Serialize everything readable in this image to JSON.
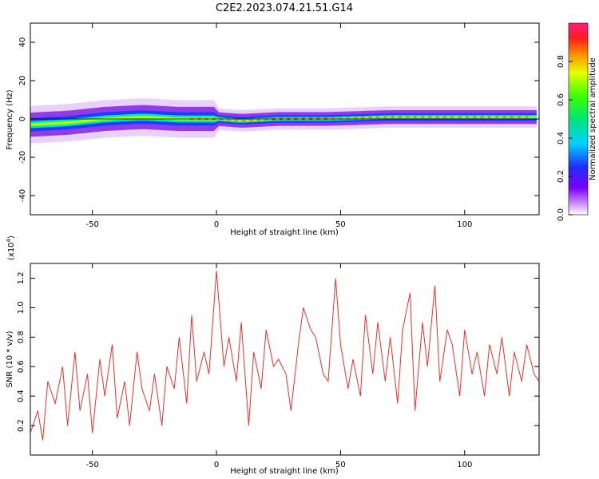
{
  "title": "C2E2.2023.074.21.51.G14",
  "chart_data": [
    {
      "type": "heatmap",
      "xlabel": "Height of straight line (km)",
      "ylabel": "Frequency (Hz)",
      "xlim": [
        -75,
        130
      ],
      "ylim": [
        -50,
        50
      ],
      "xticks": [
        -50,
        0,
        50,
        100
      ],
      "yticks": [
        -40,
        -20,
        0,
        20,
        40
      ],
      "colorbar": {
        "label": "Normalized spectral amplitude",
        "range": [
          0,
          1
        ],
        "ticks": [
          "0.0",
          "0.2",
          "0.4",
          "0.6",
          "0.8"
        ]
      },
      "ridge_center_hz": [
        {
          "x": -75,
          "y": -3
        },
        {
          "x": -60,
          "y": -2
        },
        {
          "x": -45,
          "y": 0
        },
        {
          "x": -30,
          "y": 1
        },
        {
          "x": -15,
          "y": 0
        },
        {
          "x": 0,
          "y": 0
        },
        {
          "x": 10,
          "y": -1
        },
        {
          "x": 25,
          "y": 0
        },
        {
          "x": 45,
          "y": 0
        },
        {
          "x": 70,
          "y": 1
        },
        {
          "x": 100,
          "y": 1
        },
        {
          "x": 130,
          "y": 1
        }
      ]
    },
    {
      "type": "line",
      "xlabel": "Height of straight line (km)",
      "ylabel": "SNR (10 * v/v)",
      "yscale_label": "(x10",
      "yscale_exp": "4",
      "xlim": [
        -75,
        130
      ],
      "ylim": [
        0,
        1.3
      ],
      "xticks": [
        -50,
        0,
        50,
        100
      ],
      "yticks": [
        "0.2",
        "0.4",
        "0.6",
        "0.8",
        "1.0",
        "1.2"
      ],
      "series": [
        {
          "color": "#e8302c",
          "x": [
            -75,
            -72,
            -70,
            -68,
            -65,
            -62,
            -60,
            -57,
            -55,
            -52,
            -50,
            -47,
            -45,
            -42,
            -40,
            -37,
            -35,
            -32,
            -30,
            -27,
            -25,
            -22,
            -20,
            -17,
            -15,
            -12,
            -10,
            -8,
            -5,
            -3,
            0,
            3,
            5,
            8,
            10,
            13,
            15,
            18,
            20,
            23,
            25,
            28,
            30,
            33,
            35,
            38,
            40,
            43,
            45,
            48,
            50,
            53,
            55,
            58,
            60,
            63,
            65,
            68,
            70,
            73,
            75,
            78,
            80,
            83,
            85,
            88,
            90,
            93,
            95,
            98,
            100,
            103,
            105,
            108,
            110,
            113,
            115,
            118,
            120,
            123,
            125,
            128,
            130
          ],
          "y": [
            0.15,
            0.3,
            0.1,
            0.5,
            0.35,
            0.6,
            0.2,
            0.7,
            0.3,
            0.55,
            0.15,
            0.65,
            0.4,
            0.75,
            0.25,
            0.5,
            0.2,
            0.7,
            0.45,
            0.3,
            0.55,
            0.2,
            0.6,
            0.45,
            0.8,
            0.35,
            0.95,
            0.5,
            0.7,
            0.55,
            1.25,
            0.6,
            0.8,
            0.5,
            0.9,
            0.2,
            0.7,
            0.45,
            0.85,
            0.6,
            0.65,
            0.55,
            0.3,
            0.75,
            1.0,
            0.85,
            0.8,
            0.55,
            0.5,
            1.2,
            0.75,
            0.45,
            0.65,
            0.4,
            0.95,
            0.55,
            0.9,
            0.5,
            0.8,
            0.35,
            0.85,
            1.1,
            0.3,
            0.9,
            0.6,
            1.15,
            0.5,
            0.85,
            0.75,
            0.4,
            0.85,
            0.55,
            0.7,
            0.4,
            0.75,
            0.55,
            0.8,
            0.4,
            0.7,
            0.5,
            0.75,
            0.55,
            0.5
          ]
        }
      ]
    }
  ]
}
